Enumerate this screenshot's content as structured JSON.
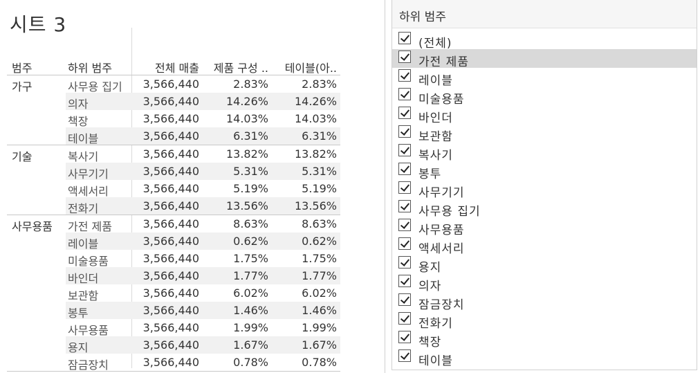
{
  "sheet": {
    "title": "시트 3"
  },
  "table": {
    "headers": {
      "category": "범주",
      "subcategory": "하위 범주",
      "total_sales": "전체 매출",
      "product_share": "제품 구성 ..",
      "table_calc": "테이블(아.."
    },
    "groups": [
      {
        "category": "가구",
        "rows": [
          {
            "sub": "사무용 집기",
            "sales": "3,566,440",
            "pct1": "2.83%",
            "pct2": "2.83%"
          },
          {
            "sub": "의자",
            "sales": "3,566,440",
            "pct1": "14.26%",
            "pct2": "14.26%"
          },
          {
            "sub": "책장",
            "sales": "3,566,440",
            "pct1": "14.03%",
            "pct2": "14.03%"
          },
          {
            "sub": "테이블",
            "sales": "3,566,440",
            "pct1": "6.31%",
            "pct2": "6.31%"
          }
        ]
      },
      {
        "category": "기술",
        "rows": [
          {
            "sub": "복사기",
            "sales": "3,566,440",
            "pct1": "13.82%",
            "pct2": "13.82%"
          },
          {
            "sub": "사무기기",
            "sales": "3,566,440",
            "pct1": "5.31%",
            "pct2": "5.31%"
          },
          {
            "sub": "액세서리",
            "sales": "3,566,440",
            "pct1": "5.19%",
            "pct2": "5.19%"
          },
          {
            "sub": "전화기",
            "sales": "3,566,440",
            "pct1": "13.56%",
            "pct2": "13.56%"
          }
        ]
      },
      {
        "category": "사무용품",
        "rows": [
          {
            "sub": "가전 제품",
            "sales": "3,566,440",
            "pct1": "8.63%",
            "pct2": "8.63%"
          },
          {
            "sub": "레이블",
            "sales": "3,566,440",
            "pct1": "0.62%",
            "pct2": "0.62%"
          },
          {
            "sub": "미술용품",
            "sales": "3,566,440",
            "pct1": "1.75%",
            "pct2": "1.75%"
          },
          {
            "sub": "바인더",
            "sales": "3,566,440",
            "pct1": "1.77%",
            "pct2": "1.77%"
          },
          {
            "sub": "보관함",
            "sales": "3,566,440",
            "pct1": "6.02%",
            "pct2": "6.02%"
          },
          {
            "sub": "봉투",
            "sales": "3,566,440",
            "pct1": "1.46%",
            "pct2": "1.46%"
          },
          {
            "sub": "사무용품",
            "sales": "3,566,440",
            "pct1": "1.99%",
            "pct2": "1.99%"
          },
          {
            "sub": "용지",
            "sales": "3,566,440",
            "pct1": "1.67%",
            "pct2": "1.67%"
          },
          {
            "sub": "잠금장치",
            "sales": "3,566,440",
            "pct1": "0.78%",
            "pct2": "0.78%"
          }
        ]
      }
    ]
  },
  "filter": {
    "title": "하위 범주",
    "items": [
      {
        "label": "(전체)",
        "checked": true
      },
      {
        "label": "가전 제품",
        "checked": true,
        "hovered": true
      },
      {
        "label": "레이블",
        "checked": true
      },
      {
        "label": "미술용품",
        "checked": true
      },
      {
        "label": "바인더",
        "checked": true
      },
      {
        "label": "보관함",
        "checked": true
      },
      {
        "label": "복사기",
        "checked": true
      },
      {
        "label": "봉투",
        "checked": true
      },
      {
        "label": "사무기기",
        "checked": true
      },
      {
        "label": "사무용 집기",
        "checked": true
      },
      {
        "label": "사무용품",
        "checked": true
      },
      {
        "label": "액세서리",
        "checked": true
      },
      {
        "label": "용지",
        "checked": true
      },
      {
        "label": "의자",
        "checked": true
      },
      {
        "label": "잠금장치",
        "checked": true
      },
      {
        "label": "전화기",
        "checked": true
      },
      {
        "label": "책장",
        "checked": true
      },
      {
        "label": "테이블",
        "checked": true
      }
    ]
  }
}
